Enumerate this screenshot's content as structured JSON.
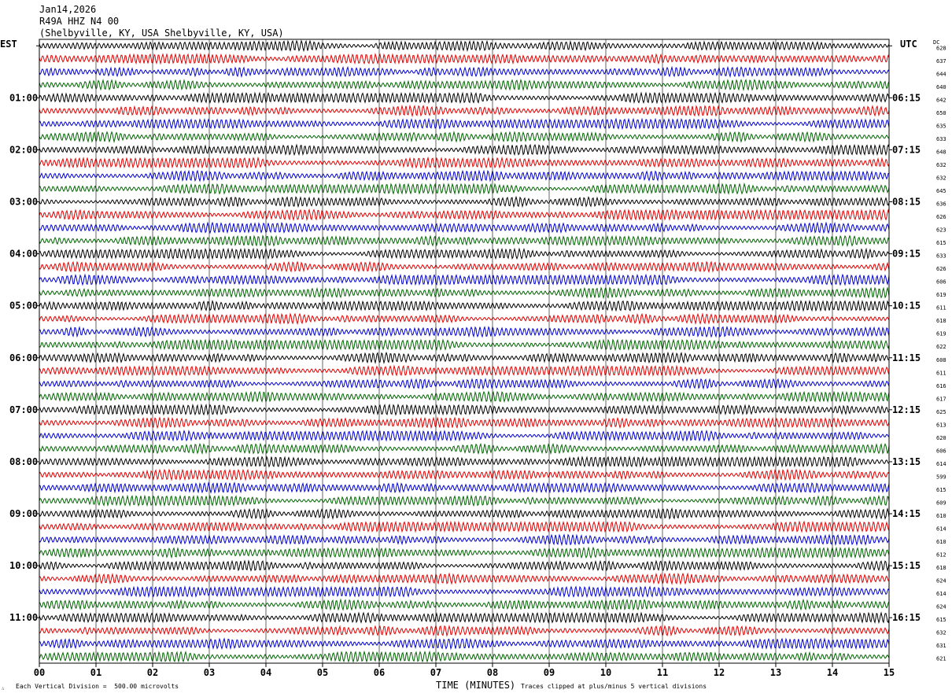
{
  "header": {
    "date": "Jan14,2026",
    "station": "R49A HHZ N4 00",
    "location": "(Shelbyville, KY, USA Shelbyville, KY, USA)"
  },
  "left_axis_title": "EST",
  "right_axis_title": "UTC",
  "dc_title": "DC",
  "footer": {
    "scale_note": "Each Vertical Division =  500.00 microvolts",
    "clip_note": "Traces clipped at plus/minus 5 vertical divisions",
    "corner_mark": "∴"
  },
  "colors": {
    "trace_cycle": [
      "#000000",
      "#e00000",
      "#0000d0",
      "#006400"
    ],
    "grid": "#000000"
  },
  "chart_data": {
    "type": "line",
    "xlabel": "TIME (MINUTES)",
    "xlim": [
      0,
      15
    ],
    "x_ticks": [
      "00",
      "01",
      "02",
      "03",
      "04",
      "05",
      "06",
      "07",
      "08",
      "09",
      "10",
      "11",
      "12",
      "13",
      "14",
      "15"
    ],
    "rows_per_hour": 4,
    "est_hour_labels": [
      "01:00",
      "02:00",
      "03:00",
      "04:00",
      "05:00",
      "06:00",
      "07:00",
      "08:00",
      "09:00",
      "10:00",
      "11:00"
    ],
    "utc_hour_labels": [
      "06:15",
      "07:15",
      "08:15",
      "09:15",
      "10:15",
      "11:15",
      "12:15",
      "13:15",
      "14:15",
      "15:15",
      "16:15"
    ],
    "dc_offsets": [
      "628",
      "637",
      "644",
      "640",
      "642",
      "650",
      "635",
      "633",
      "648",
      "632",
      "632",
      "645",
      "636",
      "626",
      "623",
      "615",
      "633",
      "626",
      "606",
      "619",
      "611",
      "618",
      "619",
      "622",
      "608",
      "611",
      "616",
      "617",
      "625",
      "613",
      "620",
      "606",
      "614",
      "599",
      "615",
      "609",
      "610",
      "614",
      "610",
      "612",
      "618",
      "624",
      "614",
      "624",
      "615",
      "632",
      "631",
      "621"
    ]
  }
}
